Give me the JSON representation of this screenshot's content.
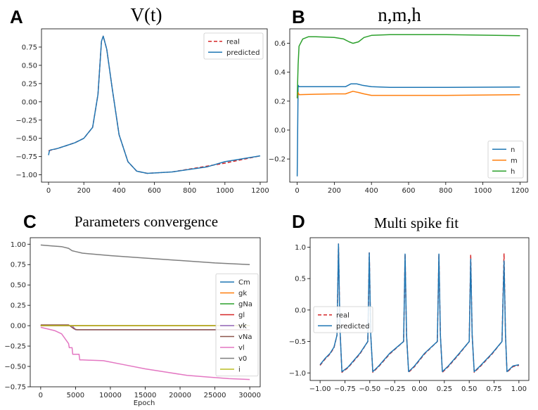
{
  "figure": {
    "panel_labels": [
      "A",
      "B",
      "C",
      "D"
    ]
  },
  "chart_data": [
    {
      "panel": "A",
      "type": "line",
      "title": "V(t)",
      "xlabel": "",
      "ylabel": "",
      "xlim": [
        -40,
        1240
      ],
      "ylim": [
        -1.1,
        1.0
      ],
      "xticks": [
        0,
        200,
        400,
        600,
        800,
        1000,
        1200
      ],
      "yticks": [
        -1.0,
        -0.75,
        -0.5,
        -0.25,
        0.0,
        0.25,
        0.5,
        0.75
      ],
      "ytick_labels": [
        "−1.00",
        "−0.75",
        "−0.50",
        "−0.25",
        "0.00",
        "0.25",
        "0.50",
        "0.75"
      ],
      "legend": "top-right",
      "series": [
        {
          "name": "real",
          "color": "#d62728",
          "style": "dashed",
          "x": [
            0,
            50,
            100,
            150,
            200,
            250,
            280,
            300,
            310,
            330,
            360,
            400,
            450,
            500,
            560,
            700,
            900,
            1000,
            1100,
            1200
          ],
          "y": [
            -0.67,
            -0.64,
            -0.6,
            -0.56,
            -0.5,
            -0.35,
            0.1,
            0.83,
            0.9,
            0.72,
            0.2,
            -0.45,
            -0.82,
            -0.95,
            -0.98,
            -0.96,
            -0.88,
            -0.84,
            -0.79,
            -0.74
          ]
        },
        {
          "name": "predicted",
          "color": "#1f77b4",
          "style": "solid",
          "x": [
            0,
            5,
            10,
            50,
            100,
            150,
            200,
            250,
            280,
            300,
            310,
            330,
            360,
            400,
            450,
            500,
            560,
            700,
            900,
            1000,
            1100,
            1200
          ],
          "y": [
            -0.73,
            -0.67,
            -0.66,
            -0.64,
            -0.6,
            -0.56,
            -0.5,
            -0.35,
            0.1,
            0.83,
            0.9,
            0.72,
            0.2,
            -0.45,
            -0.82,
            -0.95,
            -0.98,
            -0.96,
            -0.89,
            -0.82,
            -0.78,
            -0.74
          ]
        }
      ]
    },
    {
      "panel": "B",
      "type": "line",
      "title": "n,m,h",
      "xlim": [
        -40,
        1240
      ],
      "ylim": [
        -0.36,
        0.7
      ],
      "xticks": [
        0,
        200,
        400,
        600,
        800,
        1000,
        1200
      ],
      "yticks": [
        -0.2,
        0.0,
        0.2,
        0.4,
        0.6
      ],
      "ytick_labels": [
        "−0.2",
        "0.0",
        "0.2",
        "0.4",
        "0.6"
      ],
      "legend": "bottom-right",
      "series": [
        {
          "name": "n",
          "color": "#1f77b4",
          "x": [
            0,
            5,
            10,
            100,
            200,
            260,
            290,
            320,
            350,
            400,
            500,
            800,
            1200
          ],
          "y": [
            -0.32,
            0.31,
            0.3,
            0.3,
            0.3,
            0.3,
            0.32,
            0.32,
            0.31,
            0.3,
            0.295,
            0.295,
            0.298
          ]
        },
        {
          "name": "m",
          "color": "#ff7f0e",
          "x": [
            0,
            5,
            10,
            100,
            200,
            260,
            300,
            330,
            360,
            400,
            500,
            800,
            1200
          ],
          "y": [
            0.22,
            0.26,
            0.245,
            0.248,
            0.25,
            0.25,
            0.268,
            0.26,
            0.25,
            0.24,
            0.24,
            0.24,
            0.245
          ]
        },
        {
          "name": "h",
          "color": "#2ca02c",
          "x": [
            0,
            5,
            10,
            30,
            60,
            100,
            200,
            250,
            280,
            300,
            330,
            360,
            400,
            500,
            800,
            1200
          ],
          "y": [
            0.22,
            0.45,
            0.58,
            0.63,
            0.645,
            0.645,
            0.64,
            0.63,
            0.61,
            0.6,
            0.61,
            0.64,
            0.655,
            0.66,
            0.66,
            0.653
          ]
        }
      ]
    },
    {
      "panel": "C",
      "type": "line",
      "title": "Parameters convergence",
      "xlabel": "Epoch",
      "xlim": [
        -1500,
        31500
      ],
      "ylim": [
        -0.75,
        1.08
      ],
      "xticks": [
        0,
        5000,
        10000,
        15000,
        20000,
        25000,
        30000
      ],
      "yticks": [
        -0.75,
        -0.5,
        -0.25,
        0.0,
        0.25,
        0.5,
        0.75,
        1.0
      ],
      "ytick_labels": [
        "−0.75",
        "−0.50",
        "−0.25",
        "0.00",
        "0.25",
        "0.50",
        "0.75",
        "1.00"
      ],
      "legend": "center-right",
      "series": [
        {
          "name": "Cm",
          "color": "#1f77b4",
          "x": [
            0,
            30000
          ],
          "y": [
            0.0,
            0.0
          ]
        },
        {
          "name": "gk",
          "color": "#ff7f0e",
          "x": [
            0,
            30000
          ],
          "y": [
            0.0,
            0.0
          ]
        },
        {
          "name": "gNa",
          "color": "#2ca02c",
          "x": [
            0,
            30000
          ],
          "y": [
            0.0,
            0.0
          ]
        },
        {
          "name": "gl",
          "color": "#d62728",
          "x": [
            0,
            30000
          ],
          "y": [
            0.0,
            0.0
          ]
        },
        {
          "name": "vk",
          "color": "#9467bd",
          "x": [
            0,
            4500,
            5000,
            30000
          ],
          "y": [
            0.0,
            0.0,
            -0.05,
            -0.05
          ]
        },
        {
          "name": "vNa",
          "color": "#8c564b",
          "x": [
            0,
            4000,
            4800,
            5200,
            30000
          ],
          "y": [
            0.01,
            0.01,
            -0.04,
            -0.05,
            -0.05
          ]
        },
        {
          "name": "vl",
          "color": "#e377c2",
          "x": [
            0,
            2000,
            3000,
            4000,
            4100,
            4500,
            4600,
            5500,
            5600,
            6000,
            9000,
            12000,
            15000,
            18000,
            21000,
            24000,
            27000,
            30000
          ],
          "y": [
            -0.02,
            -0.06,
            -0.1,
            -0.22,
            -0.27,
            -0.27,
            -0.35,
            -0.35,
            -0.42,
            -0.42,
            -0.43,
            -0.48,
            -0.53,
            -0.57,
            -0.61,
            -0.63,
            -0.65,
            -0.66
          ]
        },
        {
          "name": "v0",
          "color": "#7f7f7f",
          "x": [
            0,
            1500,
            3000,
            4000,
            4500,
            5000,
            6000,
            10000,
            15000,
            20000,
            25000,
            30000
          ],
          "y": [
            0.99,
            0.98,
            0.97,
            0.95,
            0.92,
            0.91,
            0.89,
            0.86,
            0.83,
            0.8,
            0.77,
            0.75
          ]
        },
        {
          "name": "i",
          "color": "#bcbd22",
          "x": [
            0,
            30000
          ],
          "y": [
            0.0,
            0.0
          ]
        }
      ]
    },
    {
      "panel": "D",
      "type": "line",
      "title": "Multi spike fit",
      "xlim": [
        -1.1,
        1.1
      ],
      "ylim": [
        -1.12,
        1.15
      ],
      "xticks": [
        -1.0,
        -0.75,
        -0.5,
        -0.25,
        0.0,
        0.25,
        0.5,
        0.75,
        1.0
      ],
      "xtick_labels": [
        "−1.00",
        "−0.75",
        "−0.50",
        "−0.25",
        "0.00",
        "0.25",
        "0.50",
        "0.75",
        "1.00"
      ],
      "yticks": [
        -1.0,
        -0.5,
        0.0,
        0.5,
        1.0
      ],
      "ytick_labels": [
        "−1.0",
        "−0.5",
        "0.0",
        "0.5",
        "1.0"
      ],
      "legend": "center-left",
      "series": [
        {
          "name": "real",
          "color": "#d62728",
          "style": "dashed",
          "x": [
            -1.0,
            -0.95,
            -0.9,
            -0.86,
            -0.83,
            -0.815,
            -0.8,
            -0.78,
            -0.72,
            -0.6,
            -0.52,
            -0.505,
            -0.49,
            -0.47,
            -0.41,
            -0.3,
            -0.16,
            -0.145,
            -0.13,
            -0.11,
            -0.05,
            0.05,
            0.18,
            0.195,
            0.21,
            0.23,
            0.29,
            0.4,
            0.5,
            0.515,
            0.53,
            0.55,
            0.61,
            0.73,
            0.83,
            0.85,
            0.865,
            0.88,
            0.94,
            1.0
          ],
          "y": [
            -0.88,
            -0.78,
            -0.7,
            -0.6,
            -0.4,
            1.05,
            -0.3,
            -0.99,
            -0.92,
            -0.7,
            -0.5,
            0.91,
            -0.4,
            -0.99,
            -0.9,
            -0.7,
            -0.5,
            0.89,
            -0.4,
            -0.99,
            -0.9,
            -0.7,
            -0.5,
            0.89,
            -0.4,
            -0.99,
            -0.9,
            -0.7,
            -0.5,
            0.88,
            -0.4,
            -0.99,
            -0.9,
            -0.7,
            -0.5,
            0.9,
            -0.4,
            -0.99,
            -0.9,
            -0.88
          ]
        },
        {
          "name": "predicted",
          "color": "#1f77b4",
          "style": "solid",
          "x": [
            -1.0,
            -0.95,
            -0.9,
            -0.86,
            -0.83,
            -0.815,
            -0.8,
            -0.78,
            -0.72,
            -0.6,
            -0.52,
            -0.505,
            -0.49,
            -0.47,
            -0.41,
            -0.3,
            -0.16,
            -0.145,
            -0.13,
            -0.11,
            -0.05,
            0.05,
            0.18,
            0.195,
            0.21,
            0.23,
            0.29,
            0.4,
            0.5,
            0.515,
            0.53,
            0.55,
            0.61,
            0.73,
            0.83,
            0.85,
            0.865,
            0.88,
            0.94,
            1.0
          ],
          "y": [
            -0.87,
            -0.77,
            -0.69,
            -0.59,
            -0.4,
            1.05,
            -0.3,
            -0.98,
            -0.91,
            -0.69,
            -0.5,
            0.91,
            -0.4,
            -0.98,
            -0.89,
            -0.69,
            -0.5,
            0.89,
            -0.4,
            -0.98,
            -0.89,
            -0.69,
            -0.5,
            0.89,
            -0.4,
            -0.98,
            -0.89,
            -0.69,
            -0.5,
            0.81,
            -0.4,
            -0.98,
            -0.89,
            -0.69,
            -0.5,
            0.78,
            -0.4,
            -0.98,
            -0.89,
            -0.87
          ]
        }
      ]
    }
  ]
}
